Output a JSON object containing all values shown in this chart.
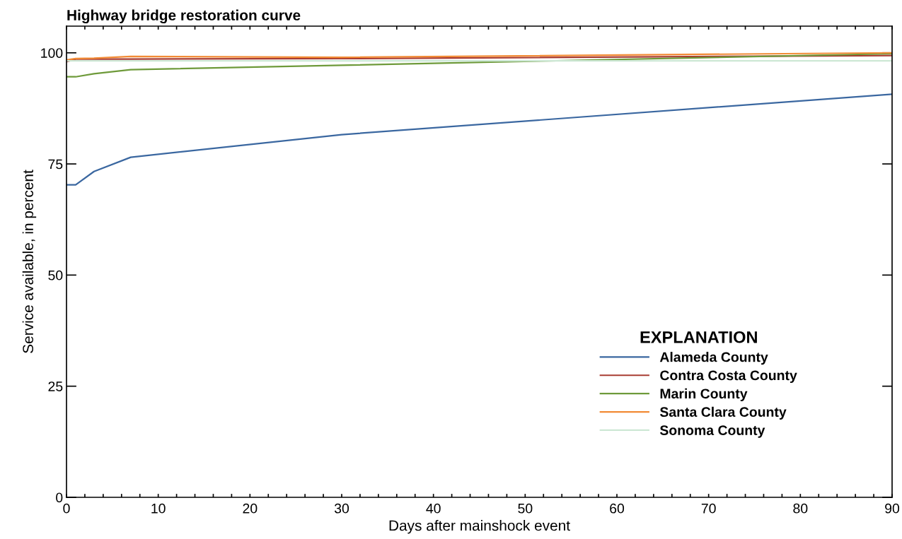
{
  "chart_data": {
    "type": "line",
    "title": "Highway bridge restoration curve",
    "xlabel": "Days after mainshock event",
    "ylabel": "Service available, in percent",
    "legend_title": "EXPLANATION",
    "x": [
      0,
      1,
      3,
      7,
      30,
      90
    ],
    "series": [
      {
        "name": "Alameda County",
        "color": "#3a67a0",
        "values": [
          70.3,
          70.3,
          73.3,
          76.5,
          81.6,
          90.7
        ]
      },
      {
        "name": "Contra Costa County",
        "color": "#a83c32",
        "values": [
          98.0,
          98.6,
          98.6,
          98.6,
          98.7,
          99.4
        ]
      },
      {
        "name": "Marin County",
        "color": "#6e9a3a",
        "values": [
          94.6,
          94.6,
          95.3,
          96.2,
          97.2,
          99.8
        ]
      },
      {
        "name": "Santa Clara County",
        "color": "#f28b35",
        "values": [
          98.4,
          98.7,
          98.8,
          99.2,
          99.0,
          100
        ]
      },
      {
        "name": "Sonoma County",
        "color": "#cde8d5",
        "values": [
          98.2,
          98.2,
          98.2,
          98.2,
          98.2,
          98.2
        ]
      }
    ],
    "xlim": [
      0,
      90
    ],
    "ylim": [
      0,
      106
    ],
    "xticks": [
      0,
      {
        "value": 2,
        "label": null
      },
      {
        "value": 4,
        "label": null
      },
      {
        "value": 6,
        "label": null
      },
      {
        "value": 8,
        "label": null
      },
      10,
      {
        "value": 12,
        "label": null
      },
      {
        "value": 14,
        "label": null
      },
      {
        "value": 16,
        "label": null
      },
      {
        "value": 18,
        "label": null
      },
      20,
      {
        "value": 22,
        "label": null
      },
      {
        "value": 24,
        "label": null
      },
      {
        "value": 26,
        "label": null
      },
      {
        "value": 28,
        "label": null
      },
      30,
      {
        "value": 32,
        "label": null
      },
      {
        "value": 34,
        "label": null
      },
      {
        "value": 36,
        "label": null
      },
      {
        "value": 38,
        "label": null
      },
      40,
      {
        "value": 42,
        "label": null
      },
      {
        "value": 44,
        "label": null
      },
      {
        "value": 46,
        "label": null
      },
      {
        "value": 48,
        "label": null
      },
      50,
      {
        "value": 52,
        "label": null
      },
      {
        "value": 54,
        "label": null
      },
      {
        "value": 56,
        "label": null
      },
      {
        "value": 58,
        "label": null
      },
      60,
      {
        "value": 62,
        "label": null
      },
      {
        "value": 64,
        "label": null
      },
      {
        "value": 66,
        "label": null
      },
      {
        "value": 68,
        "label": null
      },
      70,
      {
        "value": 72,
        "label": null
      },
      {
        "value": 74,
        "label": null
      },
      {
        "value": 76,
        "label": null
      },
      {
        "value": 78,
        "label": null
      },
      80,
      {
        "value": 82,
        "label": null
      },
      {
        "value": 84,
        "label": null
      },
      {
        "value": 86,
        "label": null
      },
      {
        "value": 88,
        "label": null
      },
      90
    ],
    "yticks": [
      0,
      25,
      50,
      75,
      100
    ],
    "grid": false,
    "legend": "bottom right",
    "marker": "none",
    "line_style": "solid"
  }
}
